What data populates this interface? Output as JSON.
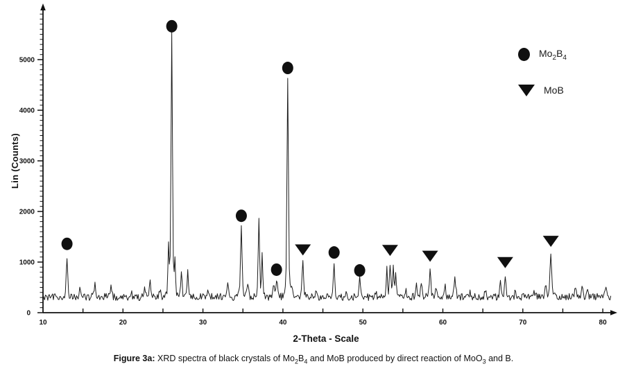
{
  "figure": {
    "caption_parts": [
      {
        "style": "bold",
        "text": "Figure 3a:"
      },
      {
        "style": "normal",
        "text": " XRD spectra of black crystals of "
      },
      {
        "style": "formula",
        "text": "Mo2B4"
      },
      {
        "style": "normal",
        "text": " and MoB produced by direct reaction of "
      },
      {
        "style": "formula",
        "text": "MoO3"
      },
      {
        "style": "normal",
        "text": " and B."
      }
    ]
  },
  "chart_data": {
    "type": "line",
    "title": "",
    "xlabel": "2-Theta - Scale",
    "ylabel": "Lin (Counts)",
    "xlim": [
      10,
      81
    ],
    "ylim": [
      0,
      6000
    ],
    "x_major_ticks": [
      10,
      20,
      30,
      40,
      50,
      60,
      70,
      80
    ],
    "x_minor_tick_step": 5,
    "y_major_ticks": [
      0,
      1000,
      2000,
      3000,
      4000,
      5000
    ],
    "y_minor_tick_step": 100,
    "y_minor_ticks_top": 5900,
    "grid": "off",
    "legend_position": "upper-right",
    "baseline_counts": 310,
    "noise_amplitude_counts": 72,
    "default_peak_width_deg": 0.12,
    "curve_color": "#1c1c1c",
    "marker_color": "#101010",
    "legend": [
      {
        "marker": "circle",
        "formula": "Mo2B4"
      },
      {
        "marker": "triangle-down",
        "formula": "MoB"
      }
    ],
    "peaks_marked": [
      {
        "two_theta": 13.0,
        "counts": 1090,
        "phase": "Mo2B4",
        "marker": "circle",
        "marker_counts": 1360
      },
      {
        "two_theta": 26.1,
        "counts": 5500,
        "phase": "Mo2B4",
        "marker": "circle",
        "marker_counts": 5660
      },
      {
        "two_theta": 34.8,
        "counts": 1760,
        "phase": "Mo2B4",
        "marker": "circle",
        "marker_counts": 1915
      },
      {
        "two_theta": 39.2,
        "counts": 690,
        "phase": "Mo2B4",
        "marker": "circle",
        "marker_counts": 850
      },
      {
        "two_theta": 40.6,
        "counts": 4670,
        "phase": "Mo2B4",
        "marker": "circle",
        "marker_counts": 4835
      },
      {
        "two_theta": 42.5,
        "counts": 1060,
        "phase": "MoB",
        "marker": "triangle-down",
        "marker_counts": 1130
      },
      {
        "two_theta": 46.4,
        "counts": 1000,
        "phase": "Mo2B4",
        "marker": "circle",
        "marker_counts": 1190
      },
      {
        "two_theta": 49.6,
        "counts": 700,
        "phase": "Mo2B4",
        "marker": "circle",
        "marker_counts": 835
      },
      {
        "two_theta": 53.4,
        "counts": 950,
        "phase": "MoB",
        "marker": "triangle-down",
        "marker_counts": 1120
      },
      {
        "two_theta": 58.4,
        "counts": 880,
        "phase": "MoB",
        "marker": "triangle-down",
        "marker_counts": 1005
      },
      {
        "two_theta": 67.8,
        "counts": 770,
        "phase": "MoB",
        "marker": "triangle-down",
        "marker_counts": 880
      },
      {
        "two_theta": 73.5,
        "counts": 1220,
        "phase": "MoB",
        "marker": "triangle-down",
        "marker_counts": 1300
      }
    ],
    "peaks_unmarked": [
      {
        "two_theta": 14.6,
        "counts": 480
      },
      {
        "two_theta": 16.5,
        "counts": 545
      },
      {
        "two_theta": 18.5,
        "counts": 505
      },
      {
        "two_theta": 21.0,
        "counts": 435
      },
      {
        "two_theta": 22.7,
        "counts": 485
      },
      {
        "two_theta": 23.4,
        "counts": 595
      },
      {
        "two_theta": 24.6,
        "counts": 470
      },
      {
        "two_theta": 25.7,
        "counts": 1310,
        "width_deg": 0.09
      },
      {
        "two_theta": 26.5,
        "counts": 890,
        "width_deg": 0.09
      },
      {
        "two_theta": 27.3,
        "counts": 805
      },
      {
        "two_theta": 28.1,
        "counts": 835
      },
      {
        "two_theta": 30.6,
        "counts": 425
      },
      {
        "two_theta": 33.1,
        "counts": 525
      },
      {
        "two_theta": 35.6,
        "counts": 565
      },
      {
        "two_theta": 37.0,
        "counts": 1885,
        "width_deg": 0.11
      },
      {
        "two_theta": 37.4,
        "counts": 1095,
        "width_deg": 0.1
      },
      {
        "two_theta": 38.8,
        "counts": 585
      },
      {
        "two_theta": 41.2,
        "counts": 450
      },
      {
        "two_theta": 44.1,
        "counts": 430
      },
      {
        "two_theta": 47.9,
        "counts": 425
      },
      {
        "two_theta": 51.6,
        "counts": 405
      },
      {
        "two_theta": 53.0,
        "counts": 860,
        "width_deg": 0.09
      },
      {
        "two_theta": 53.8,
        "counts": 880,
        "width_deg": 0.09
      },
      {
        "two_theta": 54.1,
        "counts": 780,
        "width_deg": 0.09
      },
      {
        "two_theta": 55.4,
        "counts": 435
      },
      {
        "two_theta": 56.7,
        "counts": 545
      },
      {
        "two_theta": 57.3,
        "counts": 575
      },
      {
        "two_theta": 59.1,
        "counts": 505
      },
      {
        "two_theta": 60.3,
        "counts": 505
      },
      {
        "two_theta": 61.5,
        "counts": 655,
        "width_deg": 0.16
      },
      {
        "two_theta": 63.4,
        "counts": 435
      },
      {
        "two_theta": 65.3,
        "counts": 445
      },
      {
        "two_theta": 67.2,
        "counts": 565
      },
      {
        "two_theta": 69.1,
        "counts": 435
      },
      {
        "two_theta": 71.4,
        "counts": 445
      },
      {
        "two_theta": 72.9,
        "counts": 585
      },
      {
        "two_theta": 76.6,
        "counts": 465,
        "width_deg": 0.16
      },
      {
        "two_theta": 77.4,
        "counts": 515
      },
      {
        "two_theta": 78.1,
        "counts": 475
      },
      {
        "two_theta": 80.4,
        "counts": 445,
        "width_deg": 0.16
      }
    ]
  }
}
